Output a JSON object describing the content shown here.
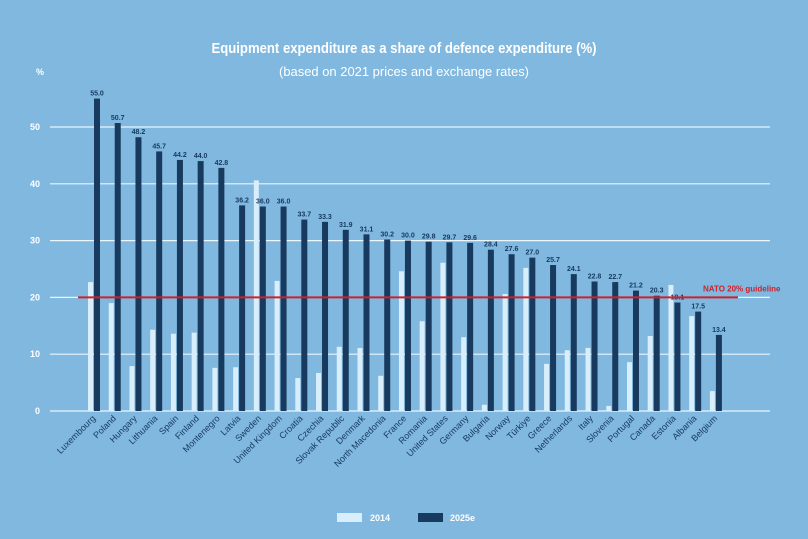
{
  "chart_data": {
    "type": "bar",
    "title": "Equipment expenditure as a share of defence expenditure (%)",
    "subtitle": "(based on 2021 prices and exchange rates)",
    "ylabel": "%",
    "ylim": [
      0,
      55
    ],
    "yticks": [
      "0",
      "10",
      "20",
      "30",
      "40",
      "50"
    ],
    "grid": true,
    "legend_position": "bottom",
    "reference_line": {
      "value": 20,
      "label": "NATO 20% guideline",
      "color": "#d0202a"
    },
    "categories": [
      "Luxembourg",
      "Poland",
      "Hungary",
      "Lithuania",
      "Spain",
      "Finland",
      "Montenegro",
      "Latvia",
      "Sweden",
      "United Kingdom",
      "Croatia",
      "Czechia",
      "Slovak Republic",
      "Denmark",
      "North Macedonia",
      "France",
      "Romania",
      "United States",
      "Germany",
      "Bulgaria",
      "Norway",
      "Türkiye",
      "Greece",
      "Netherlands",
      "Italy",
      "Slovenia",
      "Portugal",
      "Canada",
      "Estonia",
      "Albania",
      "Belgium"
    ],
    "series": [
      {
        "name": "2014",
        "color": "#d8eefa",
        "values": [
          22.7,
          19.0,
          7.9,
          14.3,
          13.6,
          13.8,
          7.6,
          7.7,
          40.6,
          22.9,
          5.8,
          6.7,
          11.3,
          11.1,
          6.2,
          24.6,
          15.8,
          26.1,
          13.0,
          1.1,
          20.6,
          25.2,
          8.3,
          10.7,
          11.1,
          0.9,
          8.6,
          13.2,
          22.2,
          16.7,
          3.5
        ]
      },
      {
        "name": "2025e",
        "color": "#173a5e",
        "values": [
          55.0,
          50.7,
          48.2,
          45.7,
          44.2,
          44.0,
          42.8,
          36.2,
          36.0,
          36.0,
          33.7,
          33.3,
          31.9,
          31.1,
          30.2,
          30.0,
          29.8,
          29.7,
          29.6,
          28.4,
          27.6,
          27.0,
          25.7,
          24.1,
          22.8,
          22.7,
          21.2,
          20.3,
          19.1,
          17.5,
          13.4
        ],
        "data_labels": [
          "55.0",
          "50.7",
          "48.2",
          "45.7",
          "44.2",
          "44.0",
          "42.8",
          "36.2",
          "36.0",
          "36.0",
          "33.7",
          "33.3",
          "31.9",
          "31.1",
          "30.2",
          "30.0",
          "29.8",
          "29.7",
          "29.6",
          "28.4",
          "27.6",
          "27.0",
          "25.7",
          "24.1",
          "22.8",
          "22.7",
          "21.2",
          "20.3",
          "19.1",
          "17.5",
          "13.4"
        ]
      }
    ]
  }
}
